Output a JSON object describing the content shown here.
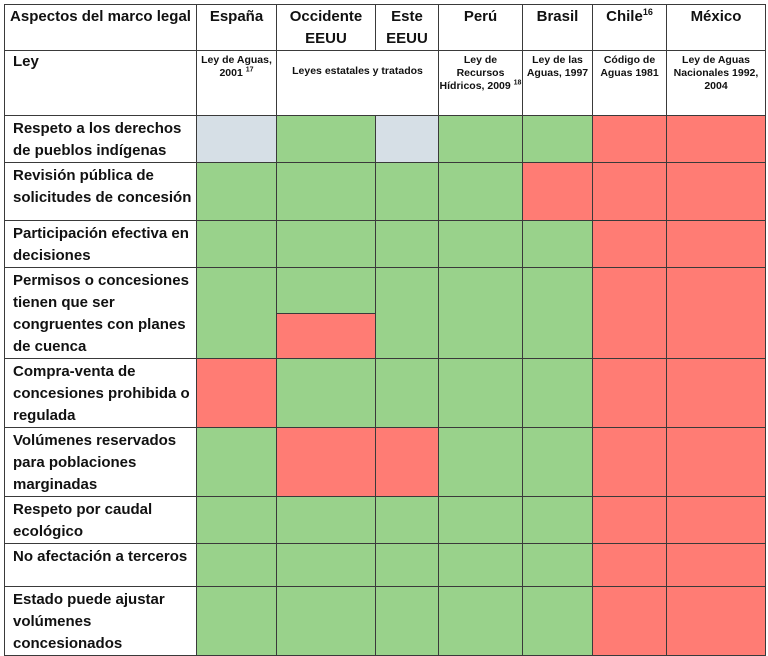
{
  "colors": {
    "green": "#99d28b",
    "red": "#ff7c74",
    "gray": "#d6dfe6"
  },
  "header": {
    "aspect": "Aspectos del marco legal",
    "columns": [
      "España",
      "Occidente EEUU",
      "Este EEUU",
      "Perú",
      "Brasil",
      "Chile",
      "México"
    ],
    "chile_sup": "16"
  },
  "law_row": {
    "label": "Ley",
    "espana": "Ley de Aguas, 2001",
    "espana_sup": "17",
    "eeuu": "Leyes estatales y tratados",
    "peru": "Ley de Recursos Hídricos, 2009",
    "peru_sup": "18",
    "brasil": "Ley de las Aguas, 1997",
    "chile": "Código de Aguas 1981",
    "mexico": "Ley de Aguas Nacionales 1992, 2004"
  },
  "rows": [
    {
      "label": "Respeto a los derechos de pueblos indígenas",
      "cells": [
        "gray",
        "green",
        "gray",
        "green",
        "green",
        "red",
        "red"
      ]
    },
    {
      "label": "Revisión pública de solicitudes de concesión",
      "cells": [
        "green",
        "green",
        "green",
        "green",
        "red",
        "red",
        "red"
      ]
    },
    {
      "label": "Participación efectiva en decisiones",
      "cells": [
        "green",
        "green",
        "green",
        "green",
        "green",
        "red",
        "red"
      ]
    },
    {
      "label": "Permisos o concesiones tienen que ser congruentes con planes de cuenca",
      "cells": [
        "green",
        "green/red",
        "green",
        "green",
        "green",
        "red",
        "red"
      ]
    },
    {
      "label": "Compra-venta de concesiones prohibida o regulada",
      "cells": [
        "red",
        "green",
        "green",
        "green",
        "green",
        "red",
        "red"
      ]
    },
    {
      "label": "Volúmenes reservados para poblaciones marginadas",
      "cells": [
        "green",
        "red",
        "red",
        "green",
        "green",
        "red",
        "red"
      ]
    },
    {
      "label": "Respeto por caudal ecológico",
      "cells": [
        "green",
        "green",
        "green",
        "green",
        "green",
        "red",
        "red"
      ]
    },
    {
      "label": "No afectación a terceros",
      "cells": [
        "green",
        "green",
        "green",
        "green",
        "green",
        "red",
        "red"
      ]
    },
    {
      "label": "Estado puede ajustar volúmenes concesionados",
      "cells": [
        "green",
        "green",
        "green",
        "green",
        "green",
        "red",
        "red"
      ]
    }
  ]
}
